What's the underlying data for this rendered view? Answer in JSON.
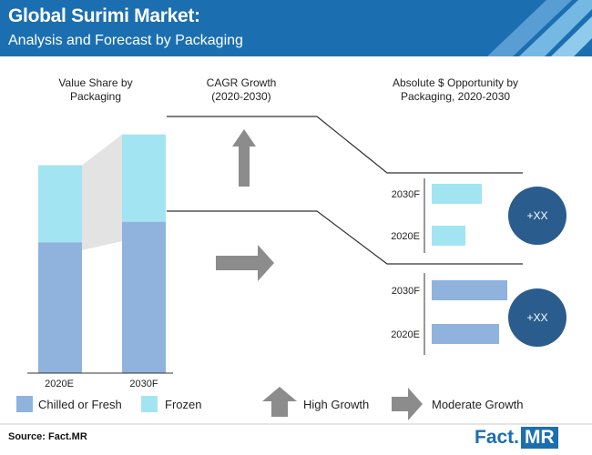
{
  "header": {
    "title": "Global Surimi Market:",
    "subtitle": "Analysis and Forecast by Packaging"
  },
  "sections": {
    "value_share": [
      "Value Share by",
      "Packaging"
    ],
    "cagr": [
      "CAGR Growth",
      "(2020-2030)"
    ],
    "opportunity": [
      "Absolute $ Opportunity by",
      "Packaging, 2020-2030"
    ]
  },
  "colors": {
    "header": "#1b6fb0",
    "chilled": "#8fb3dd",
    "frozen": "#a3e4f2",
    "circle": "#2a5c8e",
    "arrow": "#8c8c8c",
    "connector": "#e3e3e3"
  },
  "chart_data": [
    {
      "type": "bar",
      "stacked": true,
      "categories": [
        "2020E",
        "2030F"
      ],
      "ylim": [
        0,
        100
      ],
      "series": [
        {
          "name": "Chilled or Fresh",
          "values": [
            51,
            59
          ]
        },
        {
          "name": "Frozen",
          "values": [
            30,
            34
          ]
        }
      ]
    },
    {
      "type": "bar",
      "orientation": "horizontal",
      "groups": [
        {
          "segment": "Frozen",
          "categories": [
            "2030F",
            "2020E"
          ],
          "values": [
            55,
            37
          ],
          "badge": "+XX",
          "growth": "High Growth"
        },
        {
          "segment": "Chilled or Fresh",
          "categories": [
            "2030F",
            "2020E"
          ],
          "values": [
            83,
            74
          ],
          "badge": "+XX",
          "growth": "Moderate Growth"
        }
      ],
      "xlim": [
        0,
        100
      ]
    }
  ],
  "legend": {
    "items": [
      {
        "label": "Chilled or Fresh",
        "key": "chilled"
      },
      {
        "label": "Frozen",
        "key": "frozen"
      }
    ],
    "growth": [
      {
        "label": "High Growth",
        "icon": "up-arrow-icon"
      },
      {
        "label": "Moderate Growth",
        "icon": "right-arrow-icon"
      }
    ]
  },
  "footer": {
    "source": "Source: Fact.MR",
    "logo_left": "Fact.",
    "logo_right": "MR"
  }
}
